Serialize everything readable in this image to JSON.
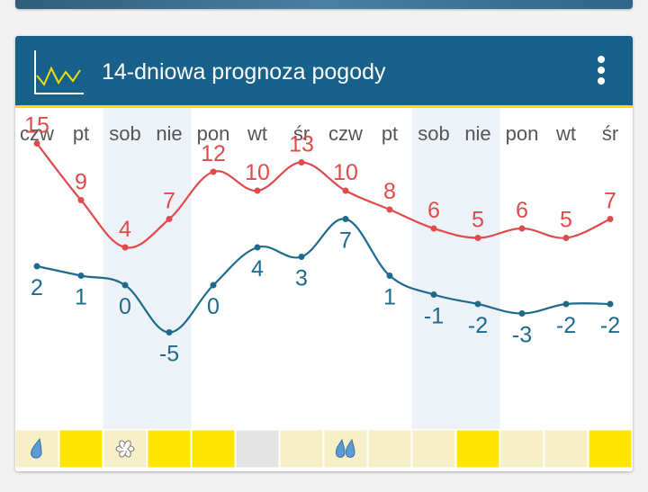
{
  "app": {
    "title": "14-dniowa prognoza pogody"
  },
  "colors": {
    "header": "#17618a",
    "accent_line": "#e9e400",
    "weekend_band": "#edf2f8",
    "max_temp": "#e04a4a",
    "min_temp": "#1e6a8c",
    "cell_yellow": "#ffe600",
    "cell_pale": "#f7f0c6",
    "cell_gray": "#e4e4e4",
    "icon_drop": "#5b9bd5"
  },
  "chart_data": {
    "type": "line",
    "categories": [
      "czw",
      "pt",
      "sob",
      "nie",
      "pon",
      "wt",
      "śr",
      "czw",
      "pt",
      "sob",
      "nie",
      "pon",
      "wt",
      "śr"
    ],
    "series": [
      {
        "values": [
          15,
          9,
          4,
          7,
          12,
          10,
          13,
          10,
          8,
          6,
          5,
          6,
          5,
          7
        ]
      },
      {
        "values": [
          2,
          1,
          0,
          -5,
          0,
          4,
          3,
          7,
          1,
          -1,
          -2,
          -3,
          -2,
          -2
        ]
      }
    ],
    "highlighted_columns": [
      2,
      3,
      9,
      10
    ],
    "conditions": [
      {
        "icon": "rain-drop-icon",
        "fill": "cell_pale"
      },
      {
        "icon": "",
        "fill": "cell_yellow"
      },
      {
        "icon": "snowflake-icon",
        "fill": "cell_pale"
      },
      {
        "icon": "",
        "fill": "cell_yellow"
      },
      {
        "icon": "",
        "fill": "cell_yellow"
      },
      {
        "icon": "",
        "fill": "cell_gray"
      },
      {
        "icon": "",
        "fill": "cell_pale"
      },
      {
        "icon": "rain-drops-icon",
        "fill": "cell_pale"
      },
      {
        "icon": "",
        "fill": "cell_pale"
      },
      {
        "icon": "",
        "fill": "cell_pale"
      },
      {
        "icon": "",
        "fill": "cell_yellow"
      },
      {
        "icon": "",
        "fill": "cell_pale"
      },
      {
        "icon": "",
        "fill": "cell_pale"
      },
      {
        "icon": "",
        "fill": "cell_yellow"
      }
    ]
  }
}
